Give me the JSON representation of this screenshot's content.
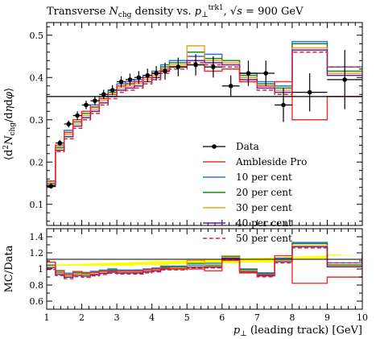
{
  "chart_data": {
    "type": "line",
    "title": "Transverse N_chg density vs. p_⊥^trk1, √s = 900 GeV",
    "xlabel": "p⊥ (leading track) [GeV]",
    "ylabel": "⟨d²N_chg/dηdφ⟩",
    "ratio_ylabel": "MC/Data",
    "xlim": [
      1,
      10
    ],
    "ylim": [
      0.05,
      0.53
    ],
    "ratio_ylim": [
      0.5,
      1.5
    ],
    "x_ticks": [
      1,
      2,
      3,
      4,
      5,
      6,
      7,
      8,
      9,
      10
    ],
    "y_ticks": [
      0.1,
      0.2,
      0.3,
      0.4,
      0.5
    ],
    "ratio_ticks": [
      0.6,
      0.8,
      1,
      1.2,
      1.4
    ],
    "bin_edges": [
      1.0,
      1.25,
      1.5,
      1.75,
      2.0,
      2.25,
      2.5,
      2.75,
      3.0,
      3.25,
      3.5,
      3.75,
      4.0,
      4.25,
      4.5,
      5.0,
      5.5,
      6.0,
      6.5,
      7.0,
      7.5,
      8.0,
      9.0,
      10.0
    ],
    "legend_position": "middle-right",
    "data": {
      "name": "Data",
      "color": "#000000",
      "y": [
        0.143,
        0.245,
        0.29,
        0.31,
        0.335,
        0.345,
        0.36,
        0.37,
        0.39,
        0.395,
        0.4,
        0.405,
        0.41,
        0.415,
        0.425,
        0.43,
        0.425,
        0.38,
        0.41,
        0.41,
        0.335,
        0.365,
        0.395,
        0.355
      ],
      "err": [
        0.006,
        0.007,
        0.008,
        0.01,
        0.01,
        0.01,
        0.011,
        0.012,
        0.013,
        0.014,
        0.015,
        0.016,
        0.017,
        0.02,
        0.022,
        0.025,
        0.025,
        0.025,
        0.03,
        0.03,
        0.04,
        0.045,
        0.07,
        0.07
      ]
    },
    "series": [
      {
        "name": "Ambleside Pro",
        "color": "#e8312a",
        "dash": false,
        "values": [
          0.155,
          0.24,
          0.27,
          0.3,
          0.32,
          0.33,
          0.35,
          0.36,
          0.38,
          0.385,
          0.39,
          0.4,
          0.41,
          0.42,
          0.425,
          0.43,
          0.415,
          0.42,
          0.39,
          0.38,
          0.39,
          0.3,
          0.355,
          0.355
        ]
      },
      {
        "name": "10 per cent",
        "color": "#2e6fdc",
        "dash": false,
        "values": [
          0.155,
          0.24,
          0.275,
          0.3,
          0.32,
          0.335,
          0.355,
          0.37,
          0.385,
          0.39,
          0.395,
          0.405,
          0.415,
          0.43,
          0.44,
          0.45,
          0.455,
          0.44,
          0.41,
          0.39,
          0.38,
          0.485,
          0.425,
          0.425
        ]
      },
      {
        "name": "20 per cent",
        "color": "#1b8a1b",
        "dash": false,
        "values": [
          0.15,
          0.235,
          0.27,
          0.295,
          0.315,
          0.33,
          0.35,
          0.365,
          0.38,
          0.385,
          0.39,
          0.4,
          0.41,
          0.425,
          0.435,
          0.46,
          0.445,
          0.44,
          0.405,
          0.385,
          0.375,
          0.48,
          0.415,
          0.415
        ]
      },
      {
        "name": "30 per cent",
        "color": "#f0a020",
        "dash": false,
        "values": [
          0.148,
          0.232,
          0.265,
          0.29,
          0.31,
          0.325,
          0.345,
          0.36,
          0.375,
          0.38,
          0.385,
          0.395,
          0.405,
          0.42,
          0.43,
          0.475,
          0.44,
          0.435,
          0.4,
          0.38,
          0.37,
          0.47,
          0.41,
          0.41
        ]
      },
      {
        "name": "40 per cent",
        "color": "#6a1d9a",
        "dash": false,
        "values": [
          0.145,
          0.228,
          0.26,
          0.285,
          0.305,
          0.32,
          0.34,
          0.355,
          0.37,
          0.375,
          0.38,
          0.39,
          0.4,
          0.415,
          0.425,
          0.44,
          0.435,
          0.43,
          0.395,
          0.375,
          0.365,
          0.465,
          0.405,
          0.405
        ]
      },
      {
        "name": "50 per cent",
        "color": "#d9243a",
        "dash": true,
        "values": [
          0.142,
          0.225,
          0.255,
          0.28,
          0.3,
          0.315,
          0.335,
          0.35,
          0.365,
          0.37,
          0.375,
          0.385,
          0.395,
          0.41,
          0.42,
          0.435,
          0.43,
          0.425,
          0.39,
          0.37,
          0.36,
          0.46,
          0.425,
          0.425
        ]
      }
    ],
    "ratio_band": {
      "color": "#ffff00",
      "upper": [
        1.05,
        1.04,
        1.04,
        1.04,
        1.04,
        1.04,
        1.04,
        1.04,
        1.04,
        1.04,
        1.05,
        1.05,
        1.05,
        1.05,
        1.06,
        1.06,
        1.07,
        1.07,
        1.08,
        1.08,
        1.12,
        1.13,
        1.18,
        1.18
      ],
      "lower": [
        0.95,
        0.96,
        0.96,
        0.96,
        0.96,
        0.96,
        0.96,
        0.96,
        0.96,
        0.96,
        0.95,
        0.95,
        0.95,
        0.95,
        0.94,
        0.94,
        0.93,
        0.93,
        0.92,
        0.92,
        0.88,
        0.87,
        0.82,
        0.82
      ]
    }
  }
}
